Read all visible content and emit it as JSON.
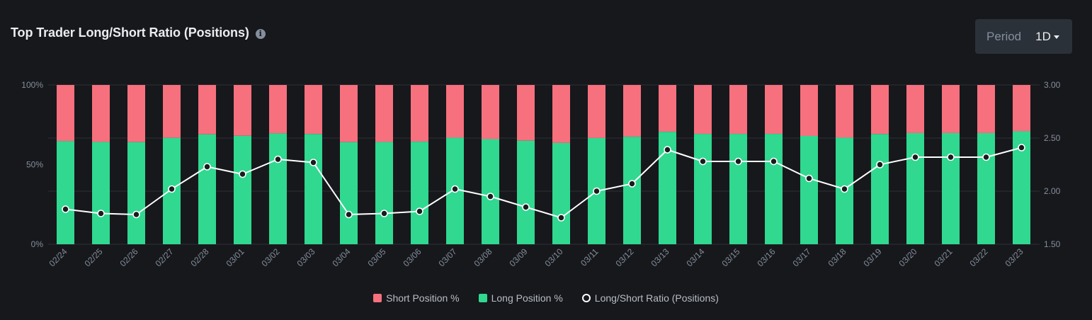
{
  "header": {
    "title": "Top Trader Long/Short Ratio (Positions)",
    "info_icon": "info-icon"
  },
  "period": {
    "label": "Period",
    "value": "1D"
  },
  "colors": {
    "short": "#f6707d",
    "long": "#30d890",
    "ratio_line": "#ffffff",
    "grid": "#2b2f36",
    "axis_text": "#848e9c"
  },
  "chart_data": {
    "type": "bar",
    "stacked": true,
    "categories": [
      "02/24",
      "02/25",
      "02/26",
      "02/27",
      "02/28",
      "03/01",
      "03/02",
      "03/03",
      "03/04",
      "03/05",
      "03/06",
      "03/07",
      "03/08",
      "03/09",
      "03/10",
      "03/11",
      "03/12",
      "03/13",
      "03/14",
      "03/15",
      "03/16",
      "03/17",
      "03/18",
      "03/19",
      "03/20",
      "03/21",
      "03/22",
      "03/23"
    ],
    "series": [
      {
        "name": "Short Position %",
        "axis": "left",
        "values": [
          35.3,
          35.8,
          35.9,
          33.2,
          31.0,
          31.9,
          30.4,
          30.8,
          35.9,
          35.8,
          35.6,
          33.1,
          34.0,
          35.0,
          36.4,
          33.3,
          32.5,
          29.4,
          30.7,
          30.7,
          30.7,
          32.0,
          33.1,
          30.8,
          30.2,
          30.2,
          30.2,
          29.1
        ]
      },
      {
        "name": "Long Position %",
        "axis": "left",
        "values": [
          64.7,
          64.2,
          64.1,
          66.8,
          69.0,
          68.1,
          69.6,
          69.2,
          64.1,
          64.2,
          64.4,
          66.9,
          66.0,
          65.0,
          63.6,
          66.7,
          67.5,
          70.6,
          69.3,
          69.3,
          69.3,
          68.0,
          66.9,
          69.2,
          69.8,
          69.8,
          69.8,
          70.9
        ]
      },
      {
        "name": "Long/Short Ratio (Positions)",
        "type": "line",
        "axis": "right",
        "values": [
          1.83,
          1.79,
          1.78,
          2.02,
          2.23,
          2.16,
          2.3,
          2.27,
          1.78,
          1.79,
          1.81,
          2.02,
          1.95,
          1.85,
          1.75,
          2.0,
          2.07,
          2.39,
          2.28,
          2.28,
          2.28,
          2.12,
          2.02,
          2.25,
          2.32,
          2.32,
          2.32,
          2.41
        ]
      }
    ],
    "y_left": {
      "ticks": [
        "0%",
        "50%",
        "100%"
      ],
      "range": [
        0,
        100
      ]
    },
    "y_right": {
      "ticks": [
        "1.50",
        "2.00",
        "2.50",
        "3.00"
      ],
      "range": [
        1.5,
        3.0
      ]
    },
    "grid": true,
    "legend_position": "bottom-center"
  },
  "legend": {
    "items": [
      "Short Position %",
      "Long Position %",
      "Long/Short Ratio (Positions)"
    ]
  }
}
